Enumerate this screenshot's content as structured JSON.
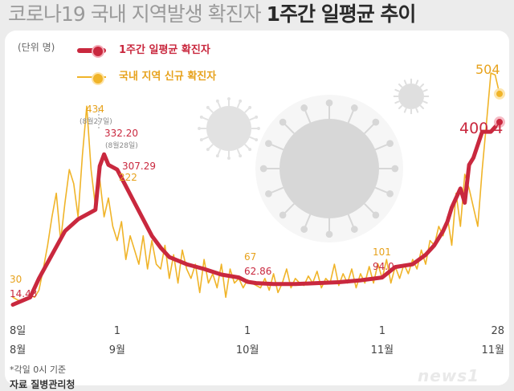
{
  "title": {
    "part1": "코로나19 국내 지역발생 확진자",
    "part2": "1주간 일평균 추이"
  },
  "unit": "(단위 명)",
  "legend": [
    {
      "label": "1주간 일평균 확진자",
      "color": "#c9283e"
    },
    {
      "label": "국내 지역 신규 확진자",
      "color": "#f0b429"
    }
  ],
  "note": "*각일 0시 기준",
  "source": "자료 질병관리청",
  "logo": "news1",
  "chart_data": {
    "type": "line",
    "x_ticks": [
      {
        "day": 0,
        "top": "8일",
        "bottom": "8월"
      },
      {
        "day": 24,
        "top": "1",
        "bottom": "9월"
      },
      {
        "day": 54,
        "top": "1",
        "bottom": "10월"
      },
      {
        "day": 85,
        "top": "1",
        "bottom": "11월"
      },
      {
        "day": 112,
        "top": "28",
        "bottom": "11월"
      }
    ],
    "ylim": [
      0,
      560
    ],
    "series": [
      {
        "name": "1주간 일평균 확진자",
        "color": "#c9283e",
        "x": [
          0,
          4,
          6,
          9,
          12,
          15,
          17,
          19,
          20,
          21,
          22,
          24,
          26,
          28,
          30,
          32,
          34,
          36,
          40,
          44,
          48,
          52,
          54,
          56,
          60,
          65,
          70,
          75,
          80,
          85,
          88,
          92,
          95,
          97,
          99,
          100,
          101,
          103,
          104,
          105,
          106,
          108,
          110,
          112
        ],
        "values": [
          14.43,
          30,
          70,
          120,
          170,
          195,
          205,
          215,
          307.29,
          332.2,
          310,
          300,
          265,
          230,
          195,
          160,
          135,
          115,
          100,
          90,
          78,
          72,
          62.86,
          60,
          58,
          58,
          60,
          62,
          66,
          72,
          94,
          100,
          120,
          140,
          170,
          190,
          220,
          260,
          230,
          310,
          325,
          380,
          380,
          400.4
        ]
      },
      {
        "name": "국내 지역 신규 확진자",
        "color": "#f0b429",
        "x": [
          0,
          2,
          3,
          4,
          5,
          6,
          7,
          8,
          9,
          10,
          11,
          12,
          13,
          14,
          15,
          16,
          17,
          18,
          19,
          20,
          21,
          22,
          23,
          24,
          25,
          26,
          27,
          28,
          29,
          30,
          31,
          32,
          33,
          34,
          35,
          36,
          37,
          38,
          39,
          40,
          41,
          42,
          43,
          44,
          45,
          46,
          47,
          48,
          49,
          50,
          51,
          52,
          53,
          54,
          55,
          56,
          57,
          58,
          59,
          60,
          61,
          62,
          63,
          64,
          65,
          66,
          67,
          68,
          69,
          70,
          71,
          72,
          73,
          74,
          75,
          76,
          77,
          78,
          79,
          80,
          81,
          82,
          83,
          84,
          85,
          86,
          87,
          88,
          89,
          90,
          91,
          92,
          93,
          94,
          95,
          96,
          97,
          98,
          99,
          100,
          101,
          102,
          103,
          104,
          105,
          106,
          107,
          108,
          109,
          110,
          111,
          112
        ],
        "values": [
          30,
          20,
          25,
          35,
          30,
          45,
          90,
          140,
          200,
          250,
          150,
          230,
          300,
          270,
          200,
          330,
          434,
          300,
          222,
          280,
          200,
          240,
          180,
          150,
          190,
          110,
          160,
          130,
          100,
          160,
          90,
          150,
          100,
          90,
          140,
          70,
          120,
          60,
          130,
          90,
          70,
          100,
          40,
          110,
          60,
          80,
          50,
          100,
          30,
          90,
          60,
          70,
          50,
          67,
          60,
          55,
          50,
          70,
          45,
          80,
          40,
          60,
          90,
          50,
          70,
          60,
          55,
          75,
          60,
          85,
          50,
          70,
          60,
          100,
          55,
          80,
          60,
          90,
          50,
          80,
          60,
          95,
          60,
          101,
          70,
          110,
          60,
          95,
          70,
          100,
          80,
          110,
          90,
          130,
          100,
          150,
          140,
          180,
          160,
          200,
          140,
          250,
          180,
          290,
          260,
          220,
          180,
          300,
          400,
          504,
          500,
          460
        ]
      }
    ],
    "annotations": [
      {
        "text": "30",
        "color": "#e7a21c"
      },
      {
        "text": "14.43",
        "color": "#c9283e"
      },
      {
        "text": "434",
        "color": "#e7a21c"
      },
      {
        "text": "(8월27일)",
        "color": "#888888"
      },
      {
        "text": "332.20",
        "color": "#c9283e"
      },
      {
        "text": "(8월28일)",
        "color": "#888888"
      },
      {
        "text": "307.29",
        "color": "#c9283e"
      },
      {
        "text": "222",
        "color": "#e7a21c"
      },
      {
        "text": "67",
        "color": "#e7a21c"
      },
      {
        "text": "62.86",
        "color": "#c9283e"
      },
      {
        "text": "101",
        "color": "#e7a21c"
      },
      {
        "text": "94.0",
        "color": "#c9283e"
      },
      {
        "text": "504",
        "color": "#e7a21c"
      },
      {
        "text": "400.4",
        "color": "#c9283e"
      }
    ]
  }
}
